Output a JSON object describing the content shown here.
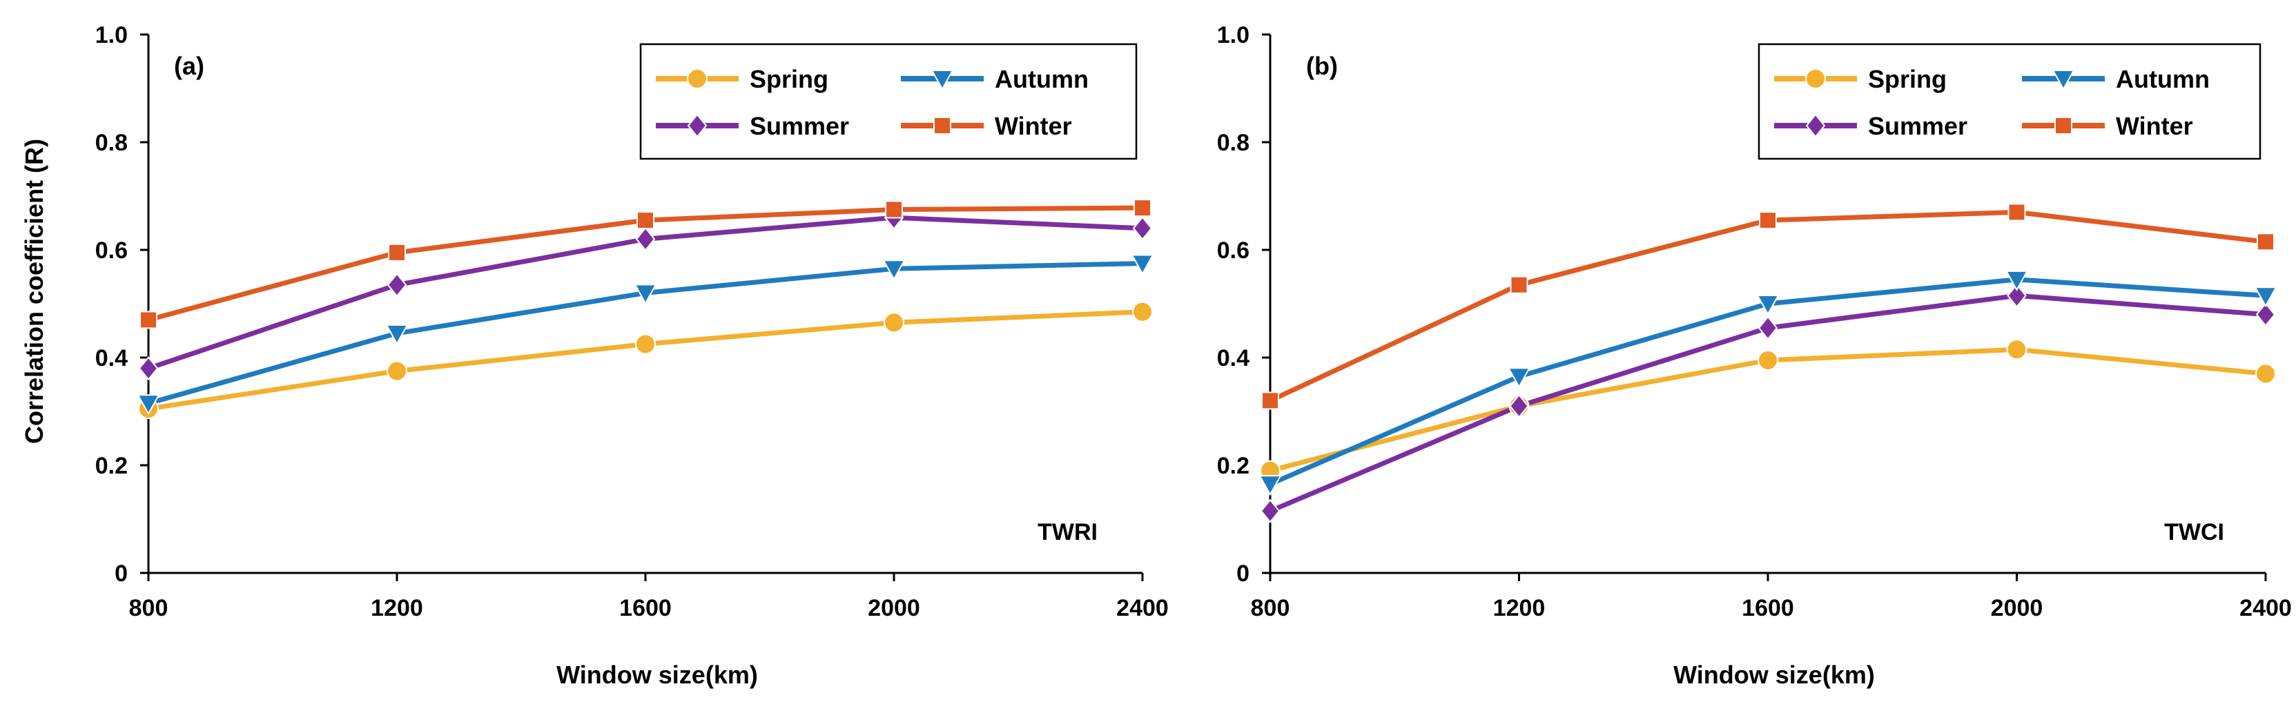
{
  "chart_data": [
    {
      "type": "line",
      "panel_label": "(a)",
      "index_label": "TWRI",
      "xlabel": "Window size(km)",
      "ylabel": "Correlation coefficient (R)",
      "x": [
        800,
        1200,
        1600,
        2000,
        2400
      ],
      "x_tick_labels": [
        "800",
        "1200",
        "1600",
        "2000",
        "2400"
      ],
      "ylim": [
        0,
        1.0
      ],
      "y_ticks": [
        0,
        0.2,
        0.4,
        0.6,
        0.8,
        1.0
      ],
      "y_tick_labels": [
        "0",
        "0.2",
        "0.4",
        "0.6",
        "0.8",
        "1.0"
      ],
      "legend_position": "top-right",
      "series": [
        {
          "name": "Spring",
          "color": "#F2B02E",
          "marker": "circle",
          "values": [
            0.305,
            0.375,
            0.425,
            0.465,
            0.485
          ]
        },
        {
          "name": "Summer",
          "color": "#7B2F9E",
          "marker": "diamond",
          "values": [
            0.38,
            0.535,
            0.62,
            0.66,
            0.64
          ]
        },
        {
          "name": "Autumn",
          "color": "#1F7BC0",
          "marker": "triangle-down",
          "values": [
            0.315,
            0.445,
            0.52,
            0.565,
            0.575
          ]
        },
        {
          "name": "Winter",
          "color": "#E05A22",
          "marker": "square",
          "values": [
            0.47,
            0.595,
            0.655,
            0.675,
            0.678
          ]
        }
      ]
    },
    {
      "type": "line",
      "panel_label": "(b)",
      "index_label": "TWCI",
      "xlabel": "Window size(km)",
      "ylabel": "",
      "x": [
        800,
        1200,
        1600,
        2000,
        2400
      ],
      "x_tick_labels": [
        "800",
        "1200",
        "1600",
        "2000",
        "2400"
      ],
      "ylim": [
        0,
        1.0
      ],
      "y_ticks": [
        0,
        0.2,
        0.4,
        0.6,
        0.8,
        1.0
      ],
      "y_tick_labels": [
        "0",
        "0.2",
        "0.4",
        "0.6",
        "0.8",
        "1.0"
      ],
      "legend_position": "top-right",
      "series": [
        {
          "name": "Spring",
          "color": "#F2B02E",
          "marker": "circle",
          "values": [
            0.19,
            0.31,
            0.395,
            0.415,
            0.37
          ]
        },
        {
          "name": "Summer",
          "color": "#7B2F9E",
          "marker": "diamond",
          "values": [
            0.115,
            0.31,
            0.455,
            0.515,
            0.48
          ]
        },
        {
          "name": "Autumn",
          "color": "#1F7BC0",
          "marker": "triangle-down",
          "values": [
            0.165,
            0.365,
            0.5,
            0.545,
            0.515
          ]
        },
        {
          "name": "Winter",
          "color": "#E05A22",
          "marker": "square",
          "values": [
            0.32,
            0.535,
            0.655,
            0.67,
            0.615
          ]
        }
      ]
    }
  ]
}
